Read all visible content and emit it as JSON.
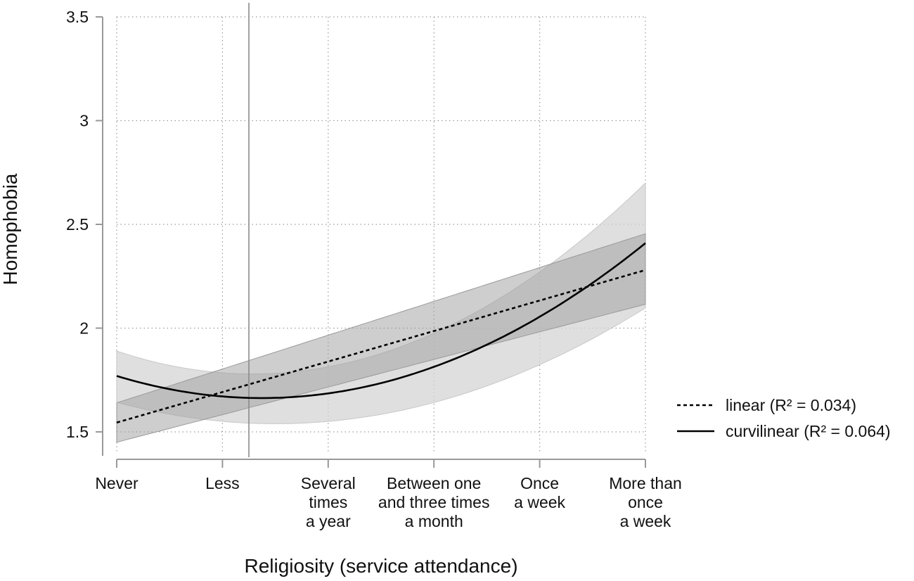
{
  "chart_data": {
    "type": "line",
    "xlabel": "Religiosity (service attendance)",
    "ylabel": "Homophobia",
    "categories": [
      [
        "Never"
      ],
      [
        "Less"
      ],
      [
        "Several",
        "times",
        "a year"
      ],
      [
        "Between one",
        "and three times",
        "a month"
      ],
      [
        "Once",
        "a week"
      ],
      [
        "More than",
        "once",
        "a week"
      ]
    ],
    "x_values": [
      0,
      1,
      2,
      3,
      4,
      5
    ],
    "ylim": [
      1.5,
      3.5
    ],
    "xlim": [
      0,
      5
    ],
    "yticks": [
      1.5,
      2,
      2.5,
      3,
      3.5
    ],
    "ytick_labels": [
      "1.5",
      "2",
      "2.5",
      "3",
      "3.5"
    ],
    "vertical_reference_x": 1.25,
    "grid": true,
    "legend_position": "right",
    "series": [
      {
        "name": "linear (R² = 0.034)",
        "style": "dotted",
        "fit": {
          "kind": "linear",
          "intercept": 1.545,
          "slope": 0.147
        },
        "ci_lower": {
          "intercept": 1.45,
          "slope": 0.133
        },
        "ci_upper": {
          "intercept": 1.64,
          "slope": 0.163
        }
      },
      {
        "name": "curvilinear (R² = 0.064)",
        "style": "solid",
        "fit": {
          "kind": "quadratic",
          "a": 0.0567,
          "b": -0.1555,
          "c": 1.7696
        },
        "ci_lower": {
          "a": 0.0457,
          "b": -0.1375,
          "c": 1.6426
        },
        "ci_upper": {
          "a": 0.0667,
          "b": -0.1715,
          "c": 1.8896
        }
      }
    ],
    "colors": {
      "linear_band": "#9e9e9e",
      "curvilinear_band": "#d4d4d4",
      "line": "#000000",
      "axis": "#999999",
      "grid": "#9a9a9a"
    }
  }
}
